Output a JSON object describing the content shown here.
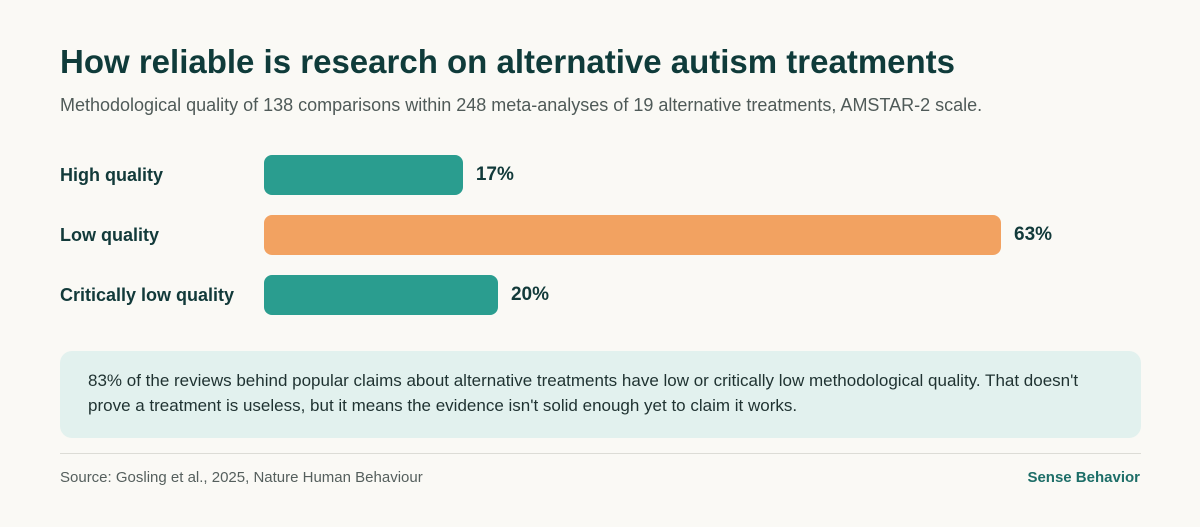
{
  "colors": {
    "background": "#faf9f5",
    "teal": "#2a9d8f",
    "orange": "#f2a261",
    "note_background": "#e2f1ee",
    "brand": "#1d6e68"
  },
  "header": {
    "title": "How reliable is research on alternative autism treatments",
    "subtitle": "Methodological quality of 138 comparisons within 248 meta-analyses of 19 alternative treatments, AMSTAR-2 scale."
  },
  "chart_data": {
    "type": "bar",
    "orientation": "horizontal",
    "categories": [
      "High quality",
      "Low quality",
      "Critically low quality"
    ],
    "values": [
      17,
      63,
      20
    ],
    "value_labels": [
      "17%",
      "63%",
      "20%"
    ],
    "colors": [
      "#2a9d8f",
      "#f2a261",
      "#2a9d8f"
    ],
    "unit": "%",
    "xlim": [
      0,
      63
    ],
    "grid": false
  },
  "note": {
    "text": "83% of the reviews behind popular claims about alternative treatments have low or critically low methodological quality. That doesn't prove a treatment is useless, but it means the evidence isn't solid enough yet to claim it works."
  },
  "footer": {
    "source": "Source: Gosling et al., 2025, Nature Human Behaviour",
    "brand": "Sense Behavior"
  }
}
